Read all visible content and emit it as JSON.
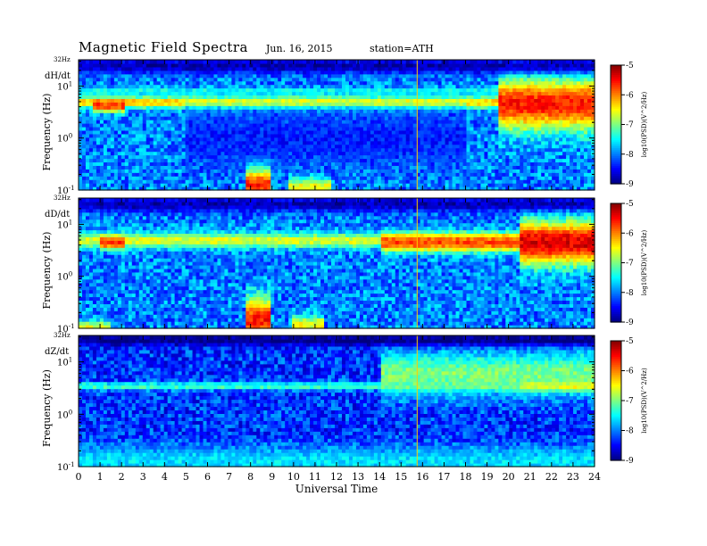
{
  "header": {
    "title": "Magnetic  Field  Spectra",
    "date": "Jun. 16, 2015",
    "station": "station=ATH"
  },
  "colors": {
    "colormap": [
      "#00007f",
      "#0000ff",
      "#007fff",
      "#00ffff",
      "#7fff7f",
      "#ffff00",
      "#ff7f00",
      "#ff0000",
      "#7f0000"
    ],
    "frame": "#000000",
    "marker_line": "#ffcc00"
  },
  "chart_data": [
    {
      "type": "heatmap",
      "panel_label": "dH/dt",
      "ylabel": "Frequency  (Hz)",
      "y_top_label": "32Hz",
      "y_tick_labels": [
        "10-1",
        "100",
        "101"
      ],
      "y_scale": "log",
      "ylim": [
        0.1,
        32
      ],
      "xlim": [
        0,
        24
      ],
      "colorbar": {
        "label": "log10(PSD)(V^2/Hz)",
        "range": [
          -9,
          -5
        ],
        "ticks": [
          -5,
          -6,
          -7,
          -8,
          -9
        ]
      },
      "background_level": -8.0,
      "features": [
        {
          "description_level": -6.3,
          "t_start": 0,
          "t_end": 24,
          "f_center": 5,
          "f_width_decades": 0.08
        },
        {
          "description_level": -7.4,
          "t_start": 0,
          "t_end": 24,
          "f_center": 8,
          "f_width_decades": 0.05
        },
        {
          "description_level": -5.7,
          "t_start": 0.7,
          "t_end": 2.2,
          "f_center": 4.2,
          "f_width_decades": 0.08
        },
        {
          "description_level": -5.6,
          "t_start": 19.5,
          "t_end": 24,
          "f_center": 4.5,
          "f_width_decades": 0.35
        },
        {
          "description_level": -5.5,
          "t_start": 7.8,
          "t_end": 9.0,
          "f_center": 0.13,
          "f_width_decades": 0.25
        },
        {
          "description_level": -6.5,
          "t_start": 9.8,
          "t_end": 11.8,
          "f_center": 0.12,
          "f_width_decades": 0.12
        },
        {
          "description_level": -8.4,
          "t_start": 5,
          "t_end": 18,
          "f_center": 1.0,
          "f_width_decades": 0.35
        },
        {
          "description_level": -8.8,
          "t_start": 0,
          "t_end": 24,
          "f_center": 25,
          "f_width_decades": 0.1
        }
      ]
    },
    {
      "type": "heatmap",
      "panel_label": "dD/dt",
      "ylabel": "Frequency  (Hz)",
      "y_top_label": "32Hz",
      "y_tick_labels": [
        "10-1",
        "100",
        "101"
      ],
      "y_scale": "log",
      "ylim": [
        0.1,
        32
      ],
      "xlim": [
        0,
        24
      ],
      "colorbar": {
        "label": "log10(PSD)(V^2/Hz)",
        "range": [
          -9,
          -5
        ],
        "ticks": [
          -5,
          -6,
          -7,
          -8,
          -9
        ]
      },
      "background_level": -8.0,
      "features": [
        {
          "description_level": -6.6,
          "t_start": 0,
          "t_end": 24,
          "f_center": 5,
          "f_width_decades": 0.1
        },
        {
          "description_level": -5.6,
          "t_start": 1.0,
          "t_end": 2.2,
          "f_center": 4.5,
          "f_width_decades": 0.08
        },
        {
          "description_level": -5.8,
          "t_start": 14,
          "t_end": 24,
          "f_center": 4.5,
          "f_width_decades": 0.12
        },
        {
          "description_level": -5.4,
          "t_start": 20.5,
          "t_end": 24,
          "f_center": 4.5,
          "f_width_decades": 0.3
        },
        {
          "description_level": -5.6,
          "t_start": 7.8,
          "t_end": 9.0,
          "f_center": 0.15,
          "f_width_decades": 0.3
        },
        {
          "description_level": -6.5,
          "t_start": 10,
          "t_end": 11.5,
          "f_center": 0.12,
          "f_width_decades": 0.12
        },
        {
          "description_level": -6.6,
          "t_start": 0,
          "t_end": 1.5,
          "f_center": 0.11,
          "f_width_decades": 0.08
        },
        {
          "description_level": -8.8,
          "t_start": 0,
          "t_end": 24,
          "f_center": 25,
          "f_width_decades": 0.1
        }
      ]
    },
    {
      "type": "heatmap",
      "panel_label": "dZ/dt",
      "ylabel": "Frequency  (Hz)",
      "y_top_label": "32Hz",
      "y_tick_labels": [
        "10-1",
        "100",
        "101"
      ],
      "y_scale": "log",
      "ylim": [
        0.1,
        32
      ],
      "xlim": [
        0,
        24
      ],
      "xlabel": "Universal Time",
      "x_tick_labels": [
        "0",
        "1",
        "2",
        "3",
        "4",
        "5",
        "6",
        "7",
        "8",
        "9",
        "10",
        "11",
        "12",
        "13",
        "14",
        "15",
        "16",
        "17",
        "18",
        "19",
        "20",
        "21",
        "22",
        "23",
        "24"
      ],
      "colorbar": {
        "label": "log10(PSD)(V^2/Hz)",
        "range": [
          -9,
          -5
        ],
        "ticks": [
          -5,
          -6,
          -7,
          -8,
          -9
        ]
      },
      "background_level": -8.3,
      "features": [
        {
          "description_level": -7.2,
          "t_start": 0,
          "t_end": 24,
          "f_center": 3.5,
          "f_width_decades": 0.05
        },
        {
          "description_level": -7.0,
          "t_start": 14,
          "t_end": 24,
          "f_center": 6,
          "f_width_decades": 0.3
        },
        {
          "description_level": -6.6,
          "t_start": 20.5,
          "t_end": 24,
          "f_center": 3.5,
          "f_width_decades": 0.06
        },
        {
          "description_level": -7.6,
          "t_start": 0,
          "t_end": 24,
          "f_center": 0.13,
          "f_width_decades": 0.2
        },
        {
          "description_level": -9.0,
          "t_start": 0,
          "t_end": 24,
          "f_center": 27,
          "f_width_decades": 0.08
        }
      ]
    }
  ]
}
